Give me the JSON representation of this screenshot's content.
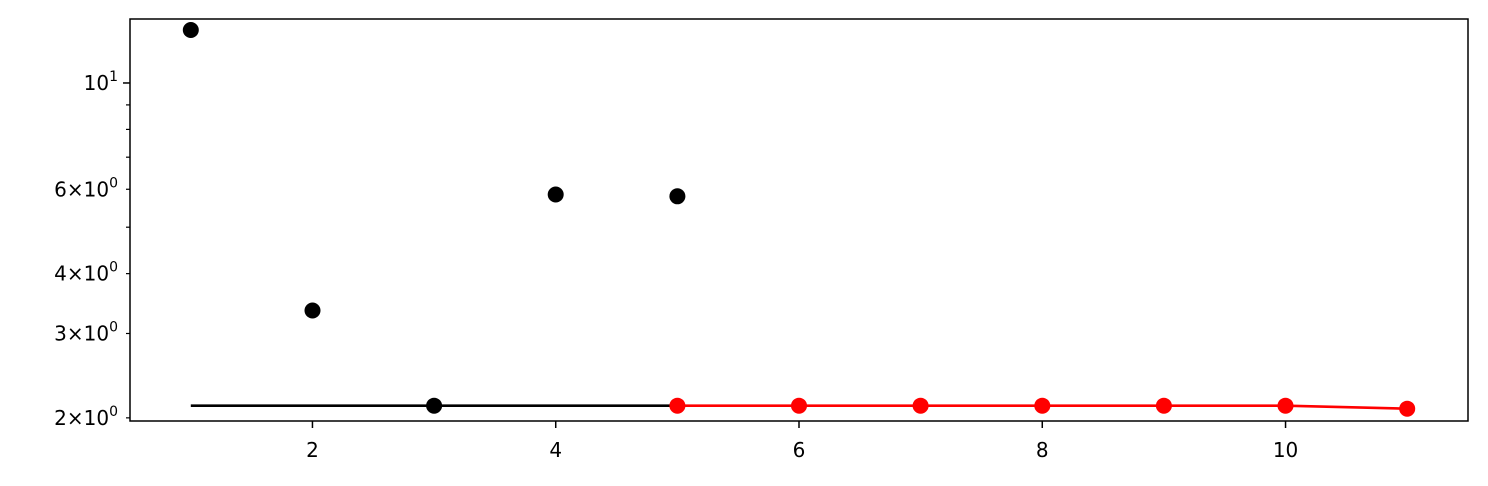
{
  "chart_data": {
    "type": "scatter",
    "title": "",
    "xlabel": "",
    "ylabel": "",
    "xlim": [
      0.5,
      11.5
    ],
    "ylim": [
      1.97,
      13.6
    ],
    "yscale": "log",
    "grid": false,
    "legend": "none",
    "x_ticks": [
      {
        "value": 2,
        "label": "2"
      },
      {
        "value": 4,
        "label": "4"
      },
      {
        "value": 6,
        "label": "6"
      },
      {
        "value": 8,
        "label": "8"
      },
      {
        "value": 10,
        "label": "10"
      }
    ],
    "y_major_ticks": [
      {
        "value": 10,
        "base": "10",
        "exp": "1"
      }
    ],
    "y_labeled_minor_ticks": [
      {
        "value": 2,
        "base": "2×10",
        "exp": "0"
      },
      {
        "value": 3,
        "base": "3×10",
        "exp": "0"
      },
      {
        "value": 4,
        "base": "4×10",
        "exp": "0"
      },
      {
        "value": 6,
        "base": "6×10",
        "exp": "0"
      }
    ],
    "y_minor_ticks": [
      5,
      7,
      8,
      9
    ],
    "series": [
      {
        "color": "#000000",
        "mode": "markers",
        "x": [
          1,
          2,
          3,
          4,
          5
        ],
        "y": [
          12.9,
          3.35,
          2.12,
          5.85,
          5.8
        ]
      },
      {
        "color": "#000000",
        "mode": "line",
        "x": [
          1,
          5
        ],
        "y": [
          2.12,
          2.12
        ]
      },
      {
        "color": "#ff0000",
        "mode": "line+markers",
        "x": [
          5,
          6,
          7,
          8,
          9,
          10,
          11
        ],
        "y": [
          2.12,
          2.12,
          2.12,
          2.12,
          2.12,
          2.12,
          2.09
        ]
      }
    ]
  }
}
